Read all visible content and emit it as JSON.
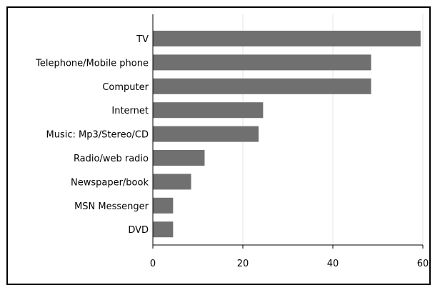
{
  "chart_data": {
    "type": "bar",
    "orientation": "horizontal",
    "categories": [
      "TV",
      "Telephone/Mobile phone",
      "Computer",
      "Internet",
      "Music: Mp3/Stereo/CD",
      "Radio/web radio",
      "Newspaper/book",
      "MSN Messenger",
      "DVD"
    ],
    "values": [
      59.5,
      48.5,
      48.5,
      24.5,
      23.5,
      11.5,
      8.5,
      4.5,
      4.5
    ],
    "xlim": [
      0,
      60
    ],
    "xticks": [
      "0",
      "20",
      "40",
      "60"
    ],
    "grid": true,
    "bar_color": "#707070",
    "grid_color": "#e6e6e6"
  }
}
